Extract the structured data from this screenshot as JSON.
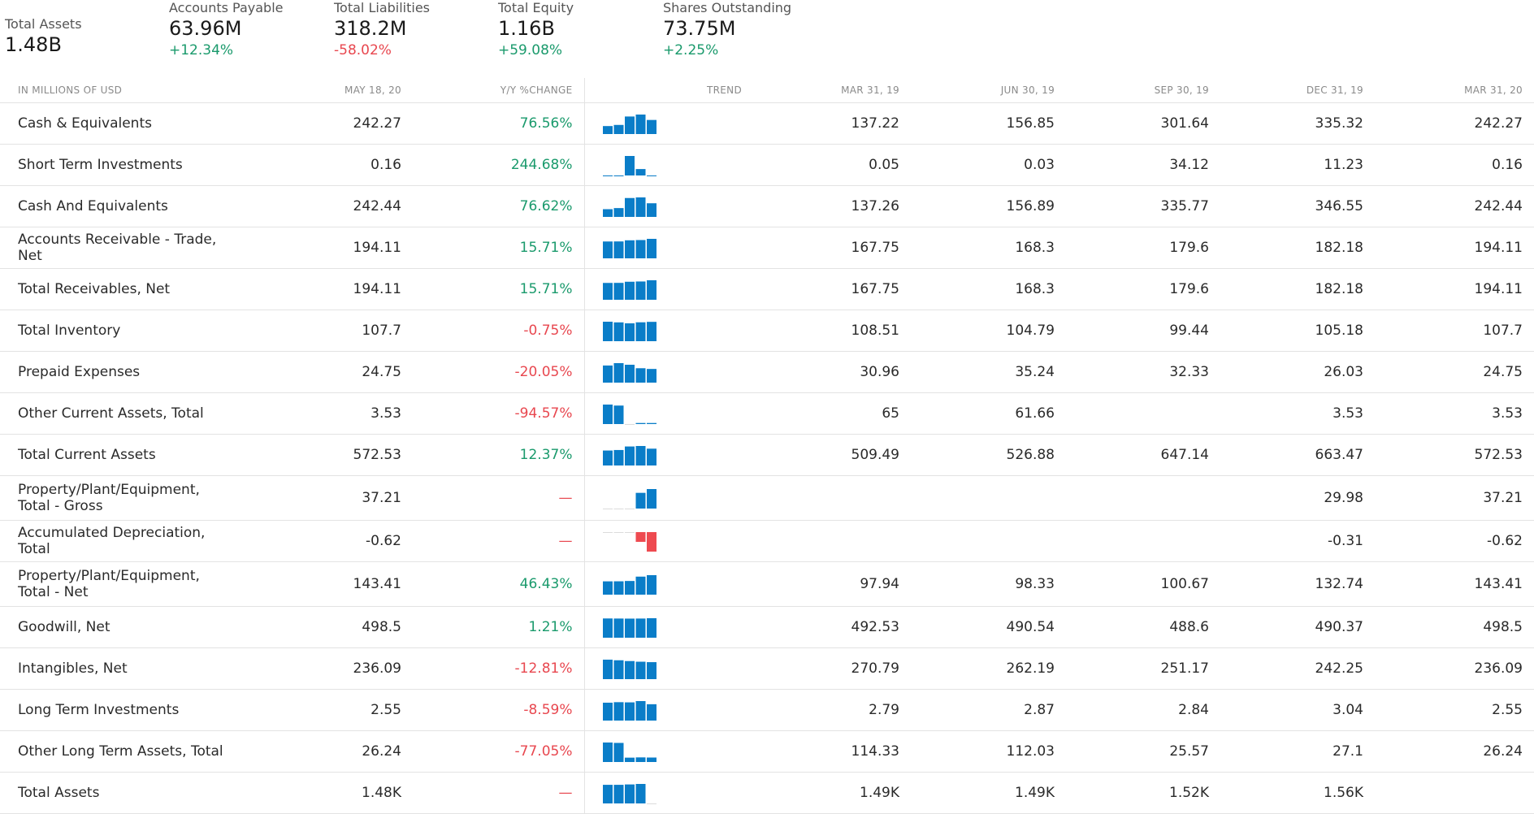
{
  "summary": [
    {
      "label": "Total Assets",
      "value": "1.48B",
      "change": "",
      "dir": ""
    },
    {
      "label": "Accounts Payable",
      "value": "63.96M",
      "change": "+12.34%",
      "dir": "pos"
    },
    {
      "label": "Total Liabilities",
      "value": "318.2M",
      "change": "-58.02%",
      "dir": "neg"
    },
    {
      "label": "Total Equity",
      "value": "1.16B",
      "change": "+59.08%",
      "dir": "pos"
    },
    {
      "label": "Shares Outstanding",
      "value": "73.75M",
      "change": "+2.25%",
      "dir": "pos"
    }
  ],
  "table": {
    "headers": {
      "name": "IN MILLIONS OF USD",
      "latest": "MAY 18, 20",
      "change": "Y/Y %CHANGE",
      "trend": "TREND",
      "periods": [
        "MAR 31, 19",
        "JUN 30, 19",
        "SEP 30, 19",
        "DEC 31, 19",
        "MAR 31, 20"
      ]
    },
    "rows": [
      {
        "name": "Cash & Equivalents",
        "latest": "242.27",
        "change": "76.56%",
        "dir": "pos",
        "vals": [
          "137.22",
          "156.85",
          "301.64",
          "335.32",
          "242.27"
        ]
      },
      {
        "name": "Short Term Investments",
        "latest": "0.16",
        "change": "244.68%",
        "dir": "pos",
        "vals": [
          "0.05",
          "0.03",
          "34.12",
          "11.23",
          "0.16"
        ]
      },
      {
        "name": "Cash And Equivalents",
        "latest": "242.44",
        "change": "76.62%",
        "dir": "pos",
        "vals": [
          "137.26",
          "156.89",
          "335.77",
          "346.55",
          "242.44"
        ]
      },
      {
        "name": "Accounts Receivable - Trade, Net",
        "latest": "194.11",
        "change": "15.71%",
        "dir": "pos",
        "vals": [
          "167.75",
          "168.3",
          "179.6",
          "182.18",
          "194.11"
        ]
      },
      {
        "name": "Total Receivables, Net",
        "latest": "194.11",
        "change": "15.71%",
        "dir": "pos",
        "vals": [
          "167.75",
          "168.3",
          "179.6",
          "182.18",
          "194.11"
        ]
      },
      {
        "name": "Total Inventory",
        "latest": "107.7",
        "change": "-0.75%",
        "dir": "neg",
        "vals": [
          "108.51",
          "104.79",
          "99.44",
          "105.18",
          "107.7"
        ]
      },
      {
        "name": "Prepaid Expenses",
        "latest": "24.75",
        "change": "-20.05%",
        "dir": "neg",
        "vals": [
          "30.96",
          "35.24",
          "32.33",
          "26.03",
          "24.75"
        ]
      },
      {
        "name": "Other Current Assets, Total",
        "latest": "3.53",
        "change": "-94.57%",
        "dir": "neg",
        "vals": [
          "65",
          "61.66",
          "",
          "3.53",
          "3.53"
        ]
      },
      {
        "name": "Total Current Assets",
        "latest": "572.53",
        "change": "12.37%",
        "dir": "pos",
        "vals": [
          "509.49",
          "526.88",
          "647.14",
          "663.47",
          "572.53"
        ]
      },
      {
        "name": "Property/Plant/Equipment, Total - Gross",
        "latest": "37.21",
        "change": "—",
        "dir": "neu",
        "vals": [
          "",
          "",
          "",
          "29.98",
          "37.21"
        ]
      },
      {
        "name": "Accumulated Depreciation, Total",
        "latest": "-0.62",
        "change": "—",
        "dir": "neu",
        "vals": [
          "",
          "",
          "",
          "-0.31",
          "-0.62"
        ]
      },
      {
        "name": "Property/Plant/Equipment, Total - Net",
        "latest": "143.41",
        "change": "46.43%",
        "dir": "pos",
        "vals": [
          "97.94",
          "98.33",
          "100.67",
          "132.74",
          "143.41"
        ]
      },
      {
        "name": "Goodwill, Net",
        "latest": "498.5",
        "change": "1.21%",
        "dir": "pos",
        "vals": [
          "492.53",
          "490.54",
          "488.6",
          "490.37",
          "498.5"
        ]
      },
      {
        "name": "Intangibles, Net",
        "latest": "236.09",
        "change": "-12.81%",
        "dir": "neg",
        "vals": [
          "270.79",
          "262.19",
          "251.17",
          "242.25",
          "236.09"
        ]
      },
      {
        "name": "Long Term Investments",
        "latest": "2.55",
        "change": "-8.59%",
        "dir": "neg",
        "vals": [
          "2.79",
          "2.87",
          "2.84",
          "3.04",
          "2.55"
        ]
      },
      {
        "name": "Other Long Term Assets, Total",
        "latest": "26.24",
        "change": "-77.05%",
        "dir": "neg",
        "vals": [
          "114.33",
          "112.03",
          "25.57",
          "27.1",
          "26.24"
        ]
      },
      {
        "name": "Total Assets",
        "latest": "1.48K",
        "change": "—",
        "dir": "neu",
        "vals": [
          "1.49K",
          "1.49K",
          "1.52K",
          "1.56K",
          ""
        ]
      }
    ]
  },
  "colors": {
    "positive": "#1a9a6c",
    "negative": "#e8474f",
    "bar": "#0a7dc8",
    "bar_negative": "#ee4a50"
  }
}
